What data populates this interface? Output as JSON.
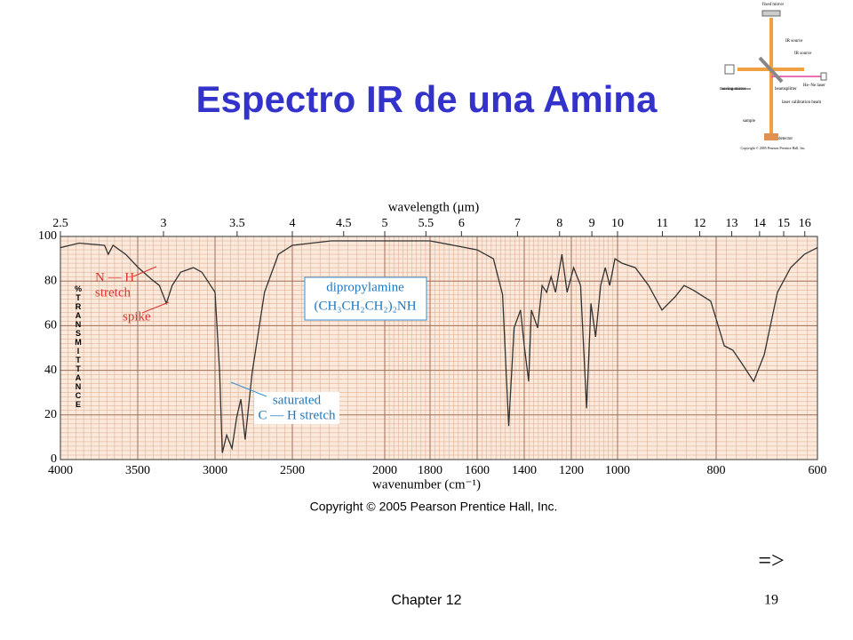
{
  "slide": {
    "title": "Espectro IR de una Amina",
    "footer": "Chapter 12",
    "page_number": "19",
    "next": "=>",
    "copyright": "Copyright © 2005 Pearson Prentice Hall, Inc."
  },
  "diagram": {
    "labels": [
      "fixed mirror",
      "IR source",
      "IR source",
      "moving mirror",
      "beamsplitter",
      "He–Ne laser",
      "laser calibration beam",
      "sample",
      "detector"
    ],
    "copyright": "Copyright © 2005 Pearson Prentice Hall, Inc."
  },
  "chart_data": {
    "type": "line",
    "color": "#333333",
    "x_label": "wavenumber (cm⁻¹)",
    "x2_label": "wavelength (μm)",
    "y_label": "% TRANSMITTANCE",
    "x": [
      4000,
      3880,
      3715,
      3690,
      3660,
      3578,
      3496,
      3414,
      3360,
      3315,
      3277,
      3222,
      3140,
      3085,
      3000,
      2970,
      2953,
      2925,
      2890,
      2860,
      2833,
      2805,
      2760,
      2680,
      2590,
      2500,
      2290,
      2000,
      1800,
      1700,
      1600,
      1531,
      1492,
      1466,
      1443,
      1416,
      1400,
      1381,
      1370,
      1343,
      1324,
      1305,
      1286,
      1267,
      1240,
      1218,
      1190,
      1160,
      1134,
      1115,
      1095,
      1073,
      1053,
      1034,
      1011,
      991,
      964,
      937,
      910,
      883,
      865,
      847,
      811,
      784,
      767,
      749,
      726,
      705,
      679,
      653,
      626,
      600
    ],
    "values": [
      95,
      97,
      96,
      92,
      96,
      92,
      86,
      81,
      78,
      70,
      78,
      84,
      86,
      84,
      75,
      39,
      3,
      11,
      5,
      19,
      27,
      9,
      39,
      75,
      92,
      96,
      98,
      98,
      98,
      96,
      94,
      90,
      74,
      15,
      59,
      67,
      51,
      35,
      67,
      59,
      78,
      75,
      82,
      75,
      92,
      75,
      86,
      78,
      23,
      70,
      55,
      78,
      86,
      78,
      90,
      88,
      86,
      78,
      67,
      73,
      78,
      76,
      71,
      51,
      49,
      43,
      35,
      47,
      75,
      86,
      92,
      95
    ],
    "xlim": [
      4000,
      600
    ],
    "ylim": [
      0,
      100
    ],
    "xticks": [
      4000,
      3500,
      3000,
      2500,
      2000,
      1800,
      1600,
      1400,
      1200,
      1000,
      800,
      600
    ],
    "x2ticks": [
      2.5,
      3,
      3.5,
      4,
      4.5,
      5,
      5.5,
      6,
      7,
      8,
      9,
      10,
      11,
      12,
      13,
      14,
      15,
      16
    ],
    "yticks": [
      0,
      20,
      40,
      60,
      80,
      100
    ],
    "grid": true,
    "annotations": [
      "N — H",
      "stretch",
      "spike",
      "dipropylamine",
      "(CH₃CH₂CH₂)₂NH",
      "saturated",
      "C — H stretch"
    ]
  }
}
